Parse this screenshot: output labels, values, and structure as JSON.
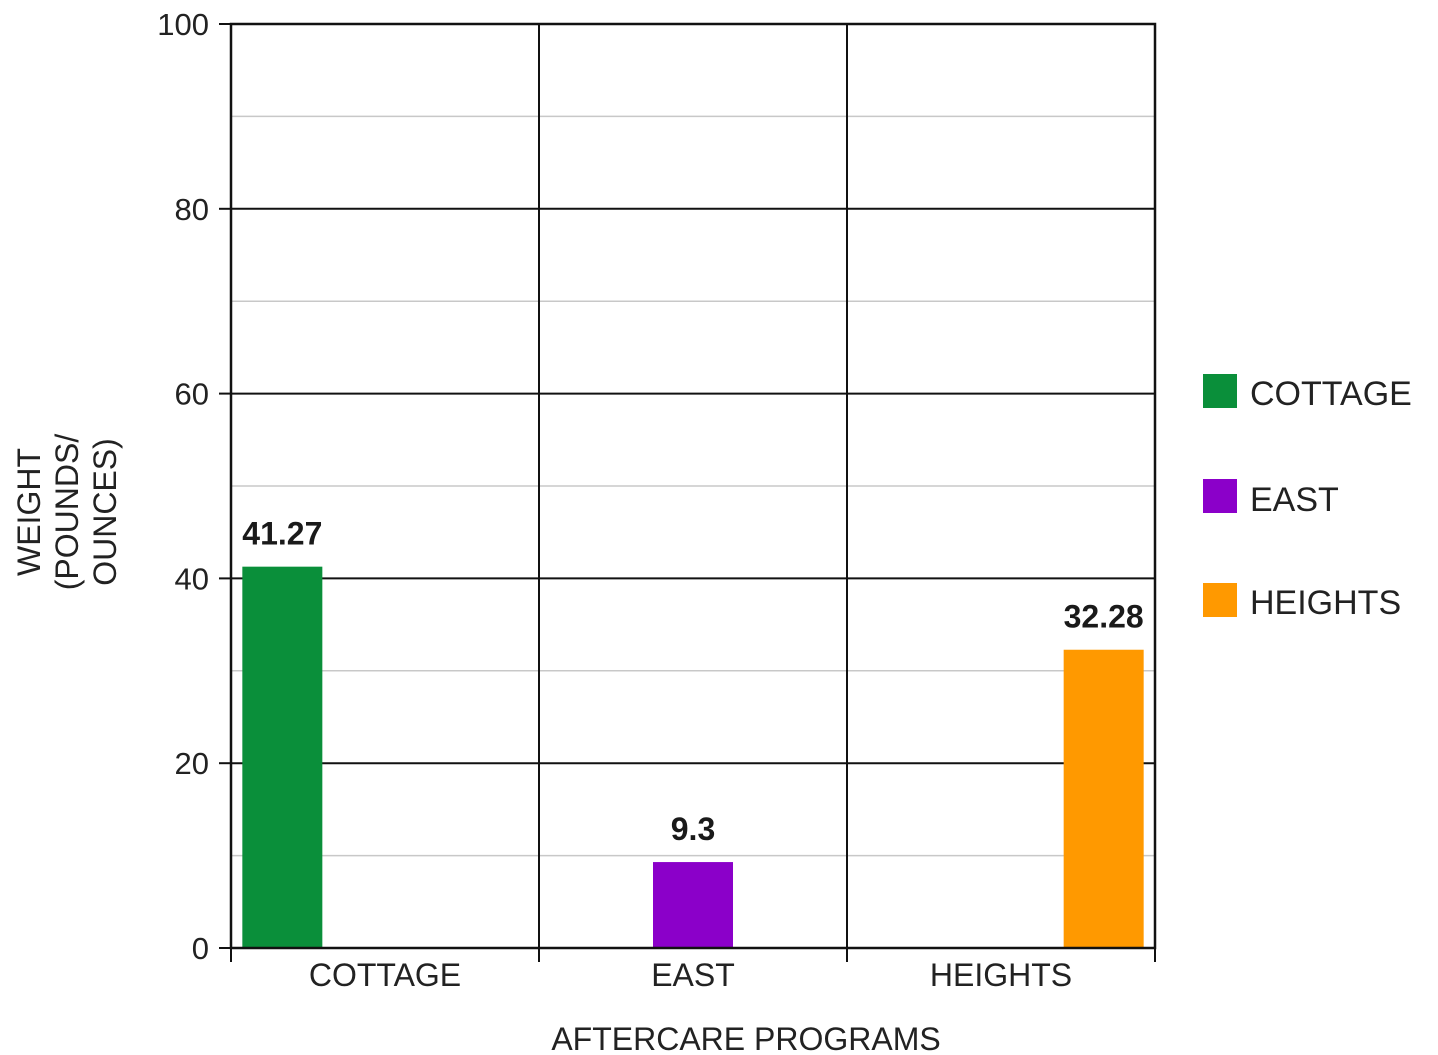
{
  "chart_data": {
    "type": "bar",
    "categories": [
      "COTTAGE",
      "EAST",
      "HEIGHTS"
    ],
    "values": [
      41.27,
      9.3,
      32.28
    ],
    "data_labels": [
      "41.27",
      "9.3",
      "32.28"
    ],
    "colors": [
      "#0a8f3a",
      "#8b00c9",
      "#ff9900"
    ],
    "xlabel": "AFTERCARE PROGRAMS",
    "ylabel_lines": [
      "WEIGHT",
      "(POUNDS/",
      "OUNCES)"
    ],
    "ylim": [
      0,
      100
    ],
    "yticks": [
      0,
      20,
      40,
      60,
      80,
      100
    ],
    "grid": true,
    "legend": {
      "placement": "right",
      "entries": [
        {
          "label": "COTTAGE",
          "color": "#0a8f3a"
        },
        {
          "label": "EAST",
          "color": "#8b00c9"
        },
        {
          "label": "HEIGHTS",
          "color": "#ff9900"
        }
      ]
    }
  }
}
